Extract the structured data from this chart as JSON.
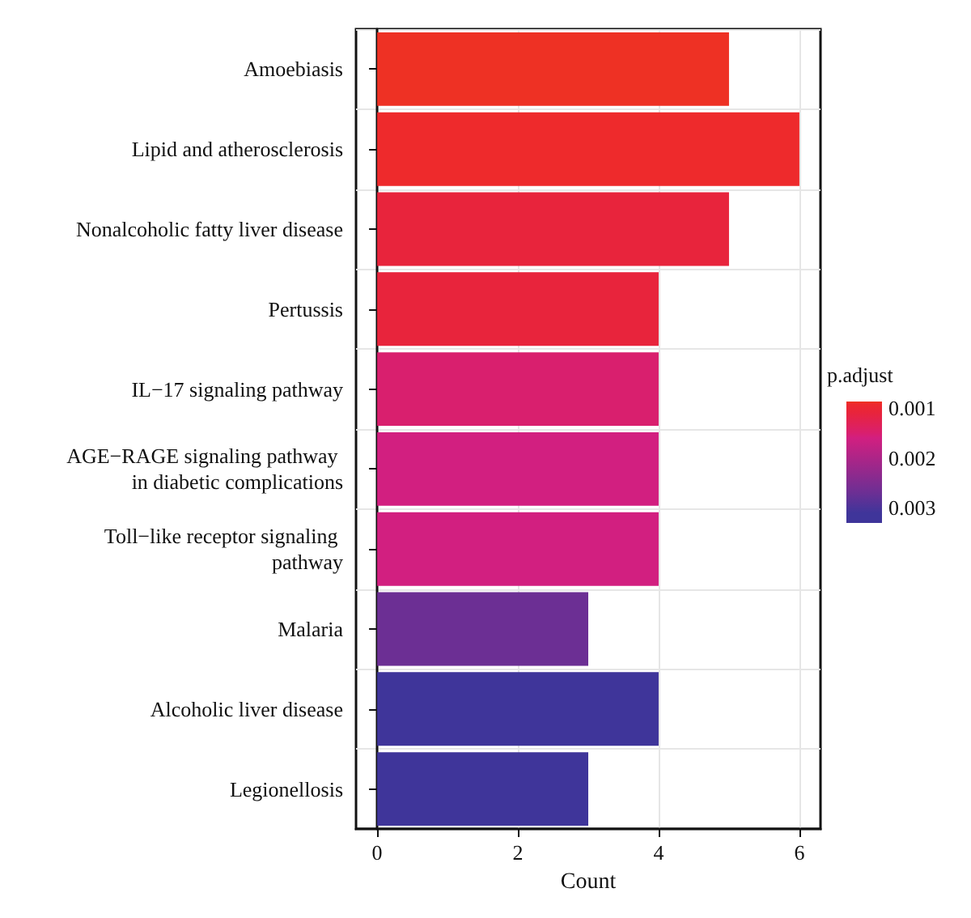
{
  "chart_data": {
    "type": "bar",
    "orientation": "horizontal",
    "xlabel": "Count",
    "clabel": "p.adjust",
    "categories": [
      "Amoebiasis",
      "Lipid and atherosclerosis",
      "Nonalcoholic fatty liver disease",
      "Pertussis",
      "IL−17 signaling pathway",
      "AGE−RAGE signaling pathway in diabetic complications",
      "Toll−like receptor signaling pathway",
      "Malaria",
      "Alcoholic liver disease",
      "Legionellosis"
    ],
    "values": [
      5,
      6,
      5,
      4,
      4,
      4,
      4,
      3,
      4,
      3
    ],
    "cvalues": [
      0.0009,
      0.0009,
      0.0011,
      0.0011,
      0.0015,
      0.0016,
      0.0016,
      0.0027,
      0.0031,
      0.0031
    ],
    "colors": [
      "#ee3124",
      "#ee2a2c",
      "#e8243c",
      "#e8243c",
      "#d91f6e",
      "#d21f80",
      "#d21f80",
      "#6c2f94",
      "#3f359a",
      "#3f359a"
    ],
    "clim": [
      0.00087,
      0.0033
    ],
    "cticks": [
      0.001,
      0.002,
      0.003
    ],
    "xlim": [
      -0.3,
      6.3
    ],
    "xticks": [
      0,
      2,
      4,
      6
    ],
    "grid": true
  }
}
